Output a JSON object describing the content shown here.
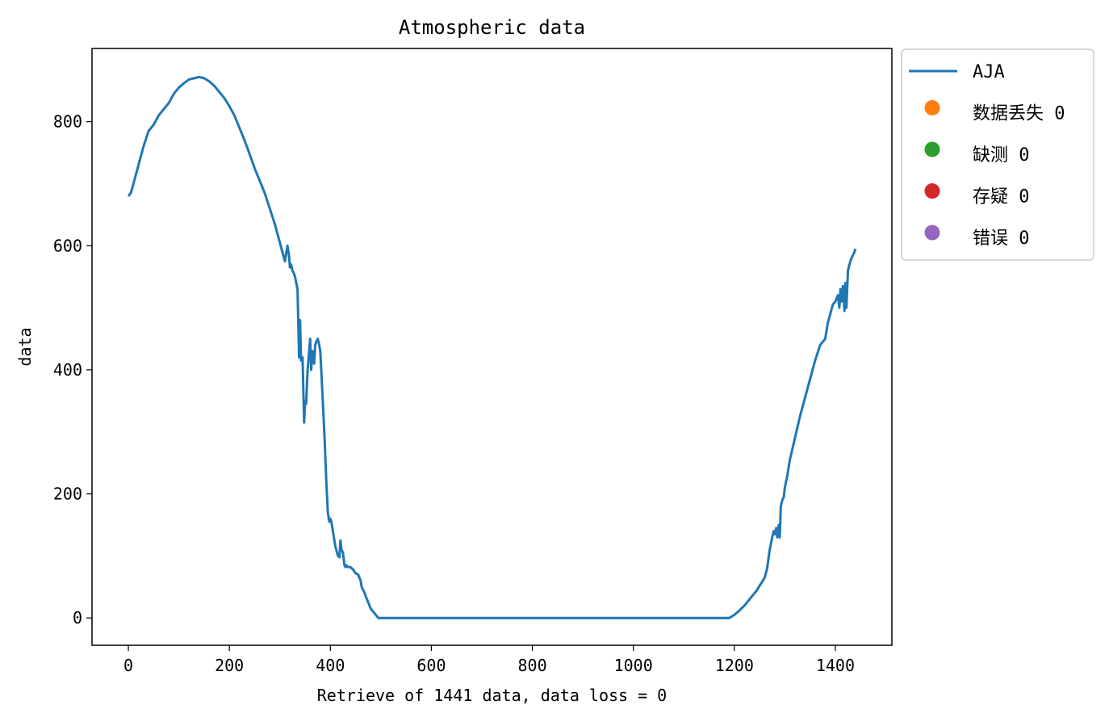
{
  "chart_data": {
    "type": "line",
    "title": "Atmospheric data",
    "xlabel": "Retrieve of 1441 data, data loss = 0",
    "ylabel": "data",
    "xlim": [
      -72,
      1512
    ],
    "ylim": [
      -44,
      918
    ],
    "xticks": [
      0,
      200,
      400,
      600,
      800,
      1000,
      1200,
      1400
    ],
    "yticks": [
      0,
      200,
      400,
      600,
      800
    ],
    "grid": false,
    "legend_position": "outside-top-right",
    "series": [
      {
        "name": "AJA",
        "kind": "line",
        "color": "#1f77b4",
        "x": [
          0,
          5,
          10,
          20,
          30,
          40,
          50,
          60,
          70,
          80,
          90,
          100,
          110,
          120,
          130,
          140,
          150,
          160,
          170,
          180,
          190,
          200,
          210,
          220,
          230,
          240,
          250,
          260,
          270,
          280,
          290,
          300,
          310,
          315,
          318,
          320,
          322,
          325,
          328,
          330,
          335,
          338,
          340,
          342,
          345,
          348,
          350,
          352,
          355,
          358,
          360,
          362,
          365,
          368,
          370,
          372,
          375,
          378,
          380,
          382,
          385,
          388,
          390,
          392,
          395,
          398,
          400,
          402,
          405,
          410,
          415,
          418,
          420,
          422,
          425,
          428,
          430,
          432,
          435,
          438,
          440,
          445,
          450,
          455,
          460,
          462,
          465,
          468,
          470,
          475,
          480,
          485,
          490,
          495,
          497,
          500,
          550,
          600,
          650,
          700,
          750,
          800,
          850,
          900,
          950,
          1000,
          1050,
          1100,
          1150,
          1190,
          1200,
          1210,
          1220,
          1230,
          1240,
          1245,
          1250,
          1255,
          1260,
          1265,
          1270,
          1275,
          1278,
          1280,
          1283,
          1285,
          1288,
          1290,
          1292,
          1295,
          1298,
          1300,
          1305,
          1310,
          1320,
          1330,
          1340,
          1350,
          1360,
          1370,
          1380,
          1385,
          1390,
          1395,
          1400,
          1405,
          1408,
          1410,
          1412,
          1415,
          1418,
          1420,
          1422,
          1425,
          1428,
          1430,
          1432,
          1435,
          1438,
          1440
        ],
        "y": [
          680,
          685,
          700,
          730,
          760,
          785,
          795,
          810,
          820,
          830,
          845,
          855,
          862,
          868,
          870,
          872,
          870,
          865,
          858,
          848,
          838,
          825,
          810,
          790,
          770,
          748,
          725,
          705,
          685,
          660,
          635,
          605,
          575,
          600,
          585,
          565,
          570,
          560,
          555,
          550,
          530,
          420,
          480,
          415,
          420,
          315,
          350,
          345,
          400,
          430,
          450,
          400,
          430,
          410,
          440,
          445,
          450,
          440,
          430,
          400,
          350,
          300,
          260,
          220,
          170,
          155,
          160,
          155,
          140,
          115,
          100,
          98,
          125,
          110,
          105,
          85,
          82,
          85,
          82,
          82,
          82,
          78,
          72,
          70,
          60,
          50,
          45,
          40,
          35,
          25,
          15,
          10,
          5,
          0,
          0,
          0,
          0,
          0,
          0,
          0,
          0,
          0,
          0,
          0,
          0,
          0,
          0,
          0,
          0,
          0,
          5,
          12,
          20,
          30,
          40,
          45,
          52,
          58,
          65,
          80,
          110,
          130,
          140,
          135,
          145,
          130,
          150,
          130,
          180,
          190,
          195,
          210,
          230,
          255,
          290,
          325,
          355,
          385,
          415,
          440,
          450,
          475,
          490,
          505,
          510,
          520,
          500,
          530,
          510,
          535,
          495,
          540,
          500,
          560,
          570,
          575,
          580,
          585,
          590,
          595
        ]
      },
      {
        "name": "数据丢失 0",
        "kind": "marker",
        "color": "#ff7f0e",
        "x": [],
        "y": []
      },
      {
        "name": "缺测 0",
        "kind": "marker",
        "color": "#2ca02c",
        "x": [],
        "y": []
      },
      {
        "name": "存疑 0",
        "kind": "marker",
        "color": "#d62728",
        "x": [],
        "y": []
      },
      {
        "name": "错误 0",
        "kind": "marker",
        "color": "#9467bd",
        "x": [],
        "y": []
      }
    ]
  }
}
